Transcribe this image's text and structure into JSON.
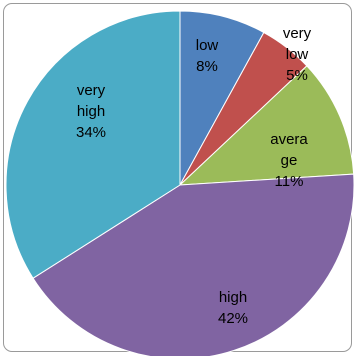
{
  "chart_data": {
    "type": "pie",
    "slices": [
      {
        "label": "low",
        "value": 8,
        "percent_label": "8%",
        "color": "#4F81BD"
      },
      {
        "label": "very low",
        "value": 5,
        "percent_label": "5%",
        "color": "#C0504D"
      },
      {
        "label": "average",
        "value": 11,
        "percent_label": "11%",
        "color": "#9BBB59"
      },
      {
        "label": "high",
        "value": 42,
        "percent_label": "42%",
        "color": "#8064A2"
      },
      {
        "label": "very high",
        "value": 34,
        "percent_label": "34%",
        "color": "#4BACC6"
      }
    ],
    "start_angle": "12 o'clock",
    "direction": "clockwise",
    "legend": "none",
    "data_labels": "category name and percentage inside slices"
  }
}
